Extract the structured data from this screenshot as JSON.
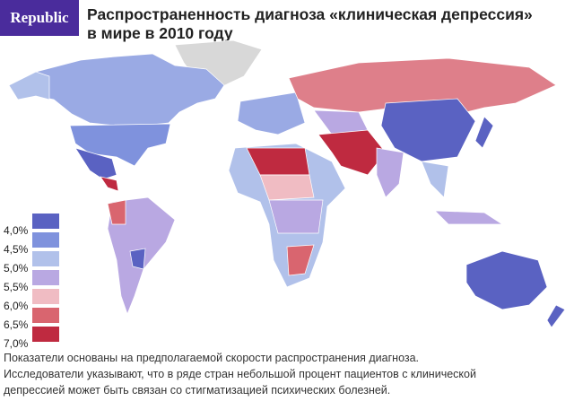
{
  "header": {
    "logo": "Republic",
    "title_lines": [
      "Распространенность диагноза «клиническая депрессия»",
      "в мире в 2010 году"
    ]
  },
  "legend": [
    {
      "label": "4,0%",
      "color": "#5a62c2"
    },
    {
      "label": "4,5%",
      "color": "#7f92dd"
    },
    {
      "label": "5,0%",
      "color": "#b1c1ea"
    },
    {
      "label": "5,5%",
      "color": "#b9a8e2"
    },
    {
      "label": "6,0%",
      "color": "#f0bcc3"
    },
    {
      "label": "6,5%",
      "color": "#d9656f"
    },
    {
      "label": "7,0%",
      "color": "#bf2a40"
    }
  ],
  "footnote_lines": [
    "Показатели основаны на предполагаемой скорости распространения диагноза.",
    "Исследователи указывают, что в ряде стран небольшой процент пациентов с клинической",
    "депрессией может быть связан со стигматизацией психических болезней."
  ]
}
